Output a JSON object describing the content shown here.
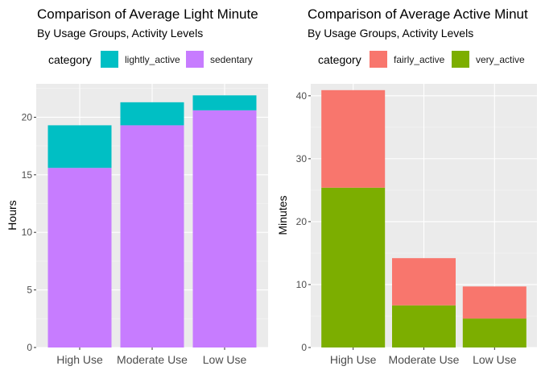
{
  "chart_data": [
    {
      "type": "bar",
      "stacked": true,
      "title": "Comparison of Average Light Minute",
      "subtitle": "By Usage Groups, Activity Levels",
      "xlabel": "",
      "ylabel": "Hours",
      "ylim": [
        0,
        22.9
      ],
      "yticks": [
        0,
        5,
        10,
        15,
        20
      ],
      "grid": true,
      "legend": {
        "title": "category",
        "placement": "top",
        "entries": [
          "lightly_active",
          "sedentary"
        ]
      },
      "categories": [
        "High Use",
        "Moderate Use",
        "Low Use"
      ],
      "series": [
        {
          "name": "sedentary",
          "color": "#C77CFF",
          "values": [
            15.6,
            19.3,
            20.6
          ]
        },
        {
          "name": "lightly_active",
          "color": "#00BFC4",
          "values": [
            3.7,
            2.0,
            1.3
          ]
        }
      ]
    },
    {
      "type": "bar",
      "stacked": true,
      "title": "Comparison of Average Active Minut",
      "subtitle": "By Usage Groups, Activity Levels",
      "xlabel": "",
      "ylabel": "Minutes",
      "ylim": [
        0,
        41.9
      ],
      "yticks": [
        0,
        10,
        20,
        30,
        40
      ],
      "grid": true,
      "legend": {
        "title": "category",
        "placement": "top",
        "entries": [
          "fairly_active",
          "very_active"
        ]
      },
      "categories": [
        "High Use",
        "Moderate Use",
        "Low Use"
      ],
      "series": [
        {
          "name": "very_active",
          "color": "#7CAE00",
          "values": [
            25.4,
            6.7,
            4.6
          ]
        },
        {
          "name": "fairly_active",
          "color": "#F8766D",
          "values": [
            15.5,
            7.5,
            5.1
          ]
        }
      ]
    }
  ]
}
